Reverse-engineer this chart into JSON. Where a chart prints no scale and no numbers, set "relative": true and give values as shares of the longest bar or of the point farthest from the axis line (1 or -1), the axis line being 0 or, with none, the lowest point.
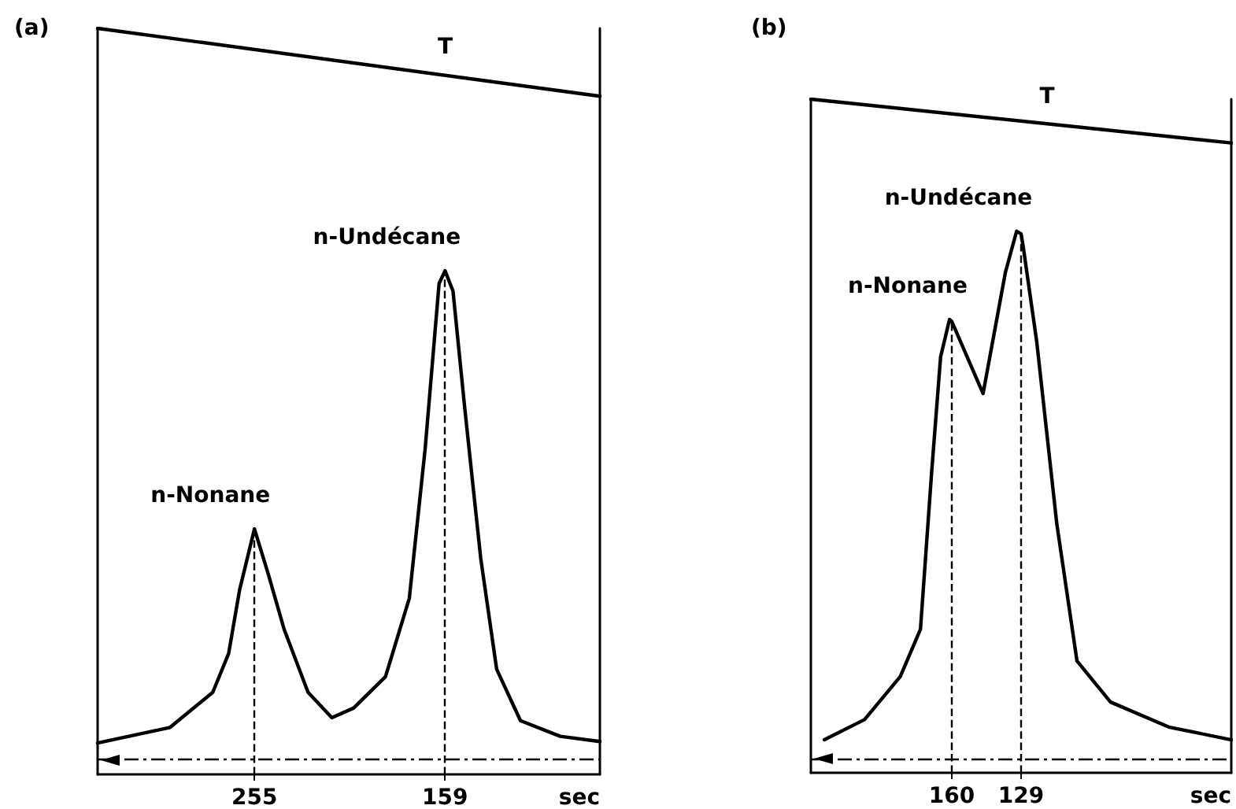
{
  "chart_data": [
    {
      "type": "line",
      "title": "(a)",
      "xlabel": "sec",
      "relative": true,
      "xlim": [
        334,
        81
      ],
      "xticks": [
        255,
        159
      ],
      "tick_labels": "x",
      "grid": false,
      "marker": "none",
      "line_style": "solid",
      "series": [
        {
          "color": "#000000",
          "x": [
            334,
            297.5,
            276,
            268,
            262.5,
            255,
            248,
            240,
            228,
            216,
            205,
            189,
            177,
            169,
            162,
            159,
            155,
            149,
            141,
            133,
            121,
            101,
            81
          ],
          "values": [
            0.042,
            0.063,
            0.11,
            0.162,
            0.247,
            0.329,
            0.268,
            0.194,
            0.11,
            0.076,
            0.089,
            0.131,
            0.236,
            0.437,
            0.658,
            0.675,
            0.648,
            0.489,
            0.289,
            0.141,
            0.072,
            0.051,
            0.044
          ]
        },
        {
          "color": "#000000",
          "x": [
            334,
            81
          ],
          "values": [
            1,
            0.909
          ]
        }
      ],
      "ref_lines": [
        {
          "axis": "x",
          "value": 255,
          "line_style": "dashed",
          "color": "#000000"
        },
        {
          "axis": "x",
          "value": 159,
          "line_style": "dashed",
          "color": "#000000"
        },
        {
          "axis": "y",
          "value": 0.02,
          "line_style": "dashed",
          "color": "#000000"
        }
      ],
      "annotations": [
        {
          "text": "n-Nonane",
          "x": 255,
          "y": 0.329
        },
        {
          "text": "n-Undécane",
          "x": 159,
          "y": 0.675
        },
        {
          "text": "T",
          "x": 163,
          "y": 0.93
        }
      ]
    },
    {
      "type": "line",
      "title": "(b)",
      "xlabel": "sec",
      "relative": true,
      "xlim": [
        223,
        35
      ],
      "xticks": [
        160,
        129
      ],
      "tick_labels": "x",
      "grid": false,
      "marker": "none",
      "line_style": "solid",
      "series": [
        {
          "color": "#000000",
          "x": [
            217,
            199,
            183,
            174,
            169,
            165,
            161,
            160,
            146,
            136,
            131,
            129,
            128,
            122,
            113,
            104,
            89,
            63,
            35
          ],
          "values": [
            0.049,
            0.079,
            0.143,
            0.213,
            0.446,
            0.617,
            0.673,
            0.67,
            0.563,
            0.743,
            0.804,
            0.8,
            0.78,
            0.64,
            0.369,
            0.166,
            0.105,
            0.068,
            0.049
          ]
        },
        {
          "color": "#000000",
          "x": [
            223,
            35
          ],
          "values": [
            1,
            0.935
          ]
        }
      ],
      "ref_lines": [
        {
          "axis": "x",
          "value": 160,
          "line_style": "dashed",
          "color": "#000000"
        },
        {
          "axis": "x",
          "value": 129,
          "line_style": "dashed",
          "color": "#000000"
        },
        {
          "axis": "y",
          "value": 0.02,
          "line_style": "dashed",
          "color": "#000000"
        }
      ],
      "annotations": [
        {
          "text": "n-Nonane",
          "x": 160,
          "y": 0.673
        },
        {
          "text": "n-Undécane",
          "x": 131,
          "y": 0.804
        },
        {
          "text": "T",
          "x": 121,
          "y": 0.955
        }
      ]
    }
  ]
}
